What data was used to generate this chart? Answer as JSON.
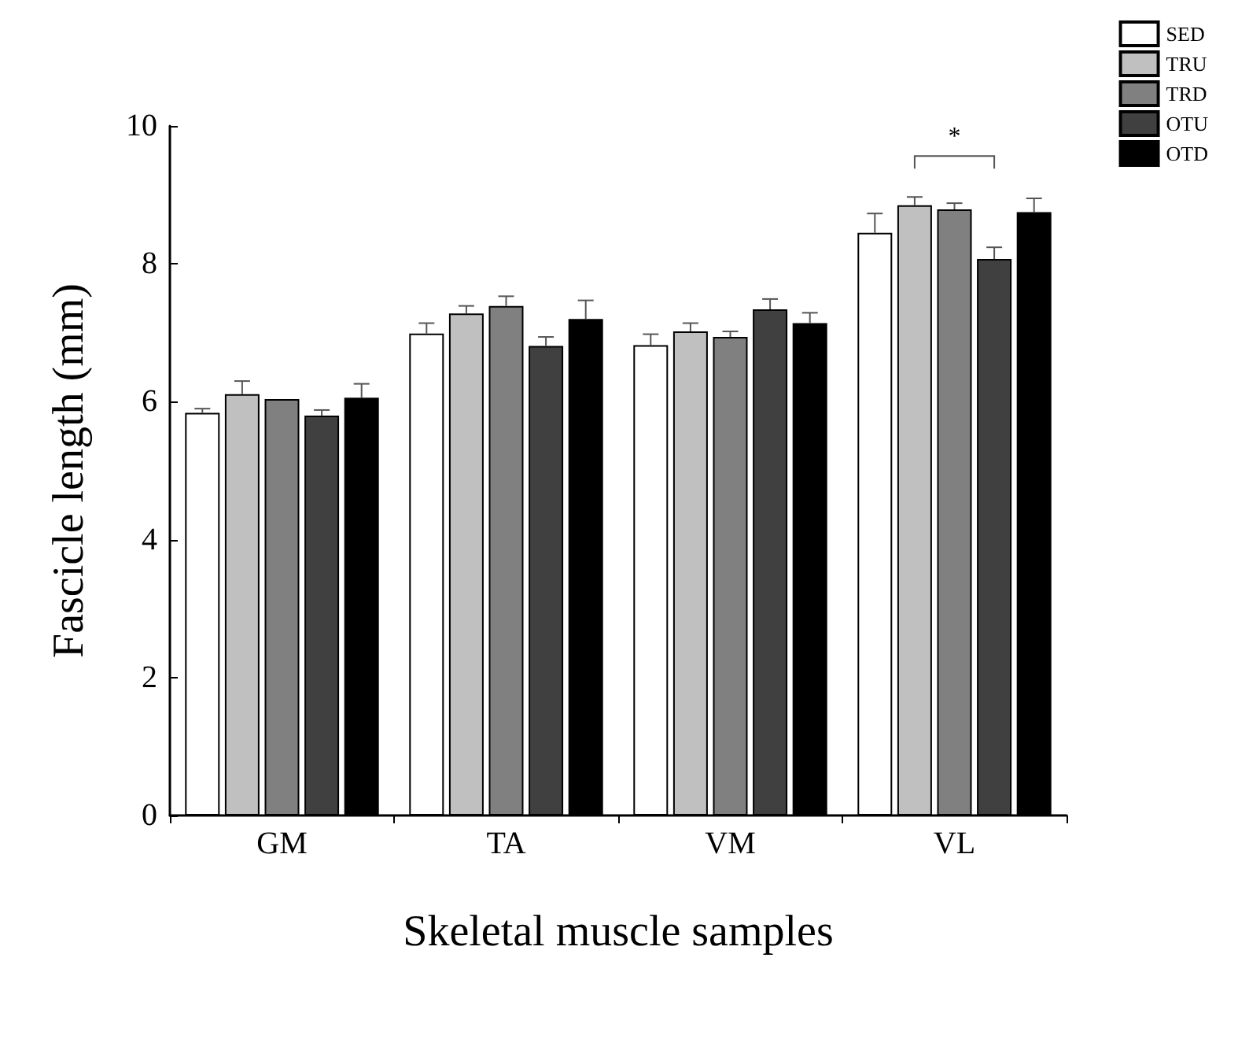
{
  "chart_data": {
    "type": "bar",
    "xlabel": "Skeletal muscle samples",
    "ylabel": "Fascicle length (mm)",
    "categories": [
      "GM",
      "TA",
      "VM",
      "VL"
    ],
    "series": [
      {
        "name": "SED",
        "color": "#ffffff",
        "values": [
          5.84,
          6.99,
          6.82,
          8.45
        ],
        "errors": [
          [
            5.84,
            5.9
          ],
          [
            6.99,
            7.14
          ],
          [
            6.82,
            6.98
          ],
          [
            8.45,
            8.73
          ]
        ]
      },
      {
        "name": "TRU",
        "color": "#c0c0c0",
        "values": [
          6.11,
          7.28,
          7.02,
          8.85
        ],
        "errors": [
          [
            6.11,
            6.3
          ],
          [
            7.28,
            7.39
          ],
          [
            7.02,
            7.14
          ],
          [
            8.85,
            8.97
          ]
        ]
      },
      {
        "name": "TRD",
        "color": "#808080",
        "values": [
          6.04,
          7.39,
          6.94,
          8.79
        ],
        "errors": [
          null,
          [
            7.39,
            7.53
          ],
          [
            6.94,
            7.02
          ],
          [
            8.79,
            8.88
          ]
        ]
      },
      {
        "name": "OTU",
        "color": "#404040",
        "values": [
          5.8,
          6.81,
          7.34,
          8.07
        ],
        "errors": [
          [
            5.8,
            5.88
          ],
          [
            6.81,
            6.94
          ],
          [
            7.34,
            7.49
          ],
          [
            8.07,
            8.24
          ]
        ]
      },
      {
        "name": "OTD",
        "color": "#000000",
        "values": [
          6.06,
          7.2,
          7.14,
          8.75
        ],
        "errors": [
          [
            6.06,
            6.26
          ],
          [
            7.2,
            7.47
          ],
          [
            7.14,
            7.29
          ],
          [
            8.75,
            8.95
          ]
        ]
      }
    ],
    "ylim": [
      0,
      10
    ],
    "yticks": [
      0,
      2,
      4,
      6,
      8,
      10
    ],
    "grid": false,
    "legend": "top right",
    "annotations": [
      "*"
    ]
  }
}
